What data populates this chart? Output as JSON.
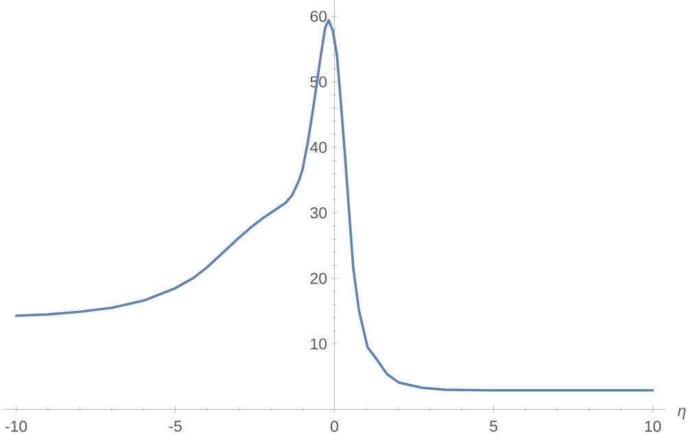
{
  "chart_data": {
    "type": "line",
    "xlabel": "η",
    "x": [
      -10,
      -9,
      -8,
      -7,
      -6,
      -5,
      -4.42,
      -4,
      -3,
      -2.62,
      -2.19,
      -1.54,
      -1.33,
      -1.11,
      -1.0,
      -0.83,
      -0.69,
      -0.56,
      -0.43,
      -0.29,
      -0.18,
      -0.05,
      0.08,
      0.19,
      0.33,
      0.46,
      0.59,
      0.77,
      1.04,
      1.29,
      1.65,
      2.02,
      2.75,
      3.48,
      4.95,
      7,
      10
    ],
    "values": [
      14.3,
      14.5,
      14.9,
      15.5,
      16.6,
      18.5,
      20.1,
      21.7,
      26.2,
      27.8,
      29.4,
      31.5,
      32.7,
      35.0,
      36.7,
      41.0,
      45.3,
      49.6,
      54.0,
      58.3,
      59.4,
      57.8,
      54.0,
      47.5,
      38.8,
      30.2,
      21.6,
      15.1,
      9.5,
      7.9,
      5.4,
      4.1,
      3.3,
      3.0,
      2.9,
      2.9,
      2.9
    ],
    "color": "#5e81b5",
    "xlim": [
      -10.4,
      10.4
    ],
    "ylim": [
      0,
      62.5
    ],
    "xticks": [
      -10,
      -5,
      0,
      5,
      10
    ],
    "yticks": [
      10,
      20,
      30,
      40,
      50,
      60
    ],
    "grid": false,
    "marker": "none",
    "line_style": "solid"
  }
}
